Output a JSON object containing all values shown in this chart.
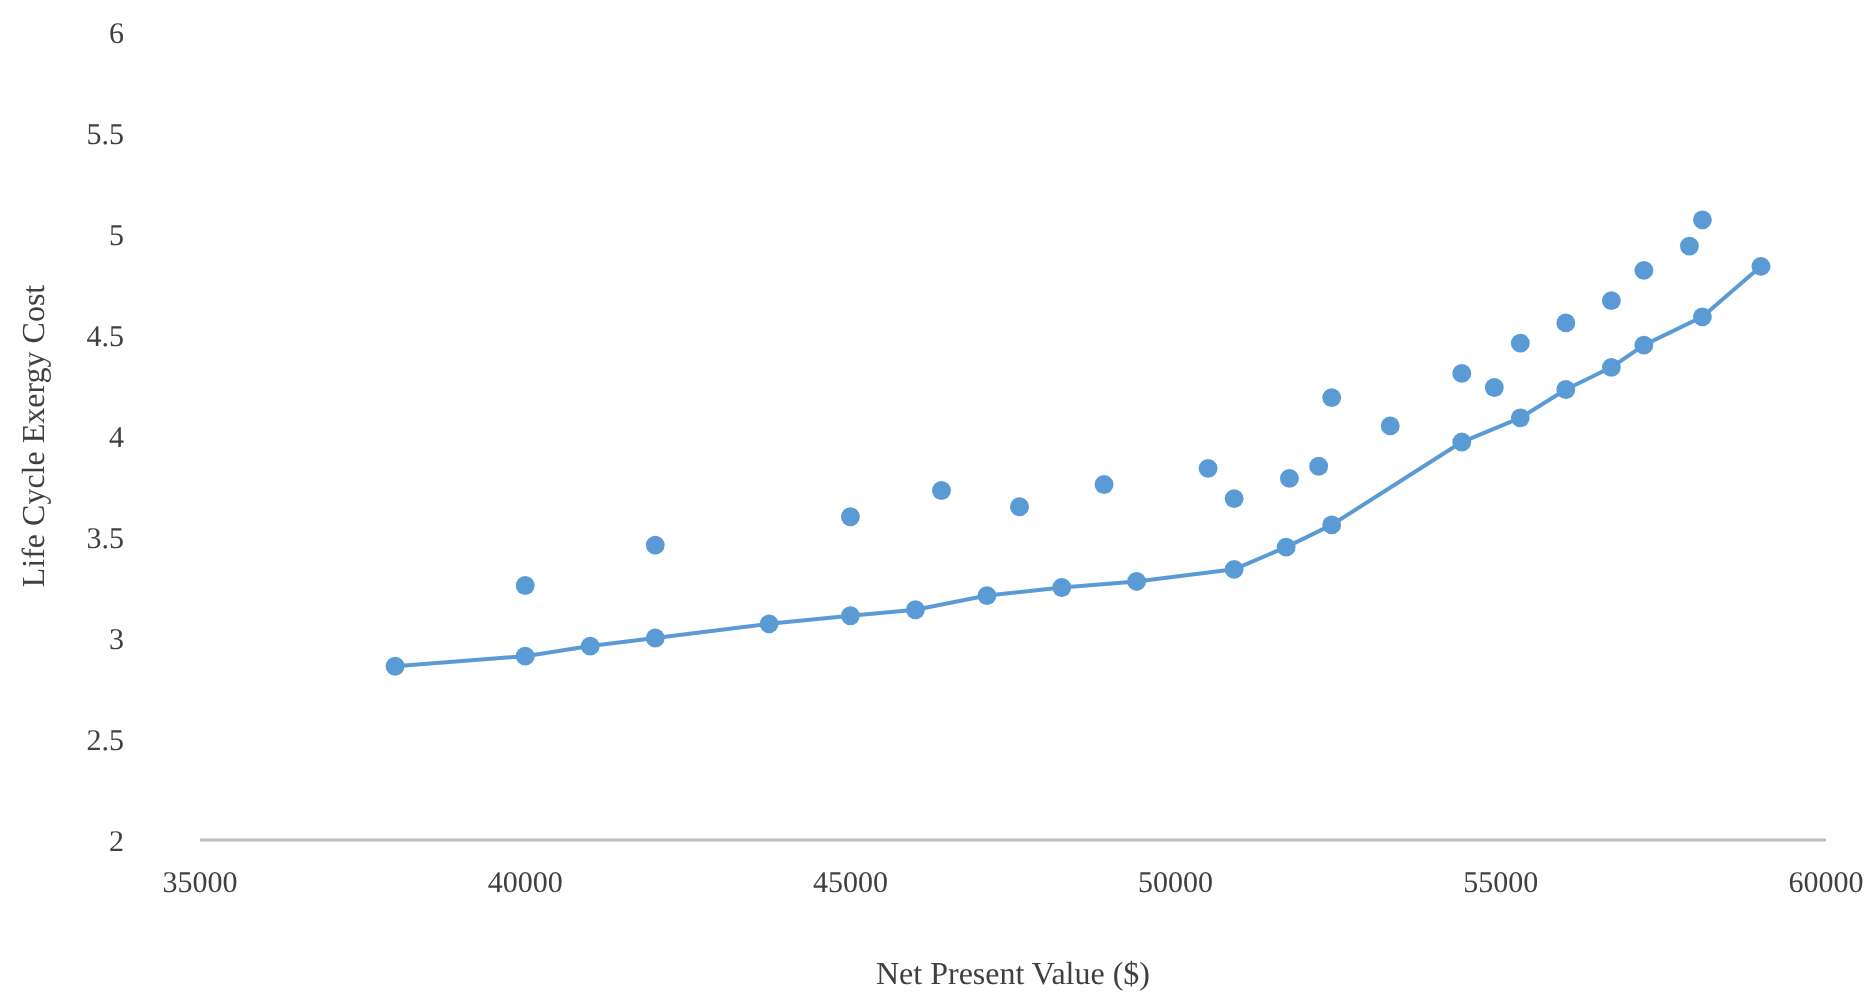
{
  "chart_data": {
    "type": "scatter",
    "xlabel": "Net Present Value ($)",
    "ylabel": "Life Cycle Exergy Cost",
    "xlim": [
      35000,
      60000
    ],
    "xticks": [
      35000,
      40000,
      45000,
      50000,
      55000,
      60000
    ],
    "ylim": [
      2,
      6
    ],
    "yticks": [
      2,
      {
        "value": 2.5,
        "label": "2.5"
      },
      3,
      {
        "value": 3.5,
        "label": "3.5"
      },
      4,
      {
        "value": 4.5,
        "label": "4.5"
      },
      5,
      {
        "value": 5.5,
        "label": "5.5"
      },
      6
    ],
    "grid": false,
    "marker": "circle",
    "series": [
      {
        "type": "line",
        "color": "#5b9bd5",
        "line_style": "solid",
        "x": [
          38000,
          40000,
          41000,
          42000,
          43750,
          45000,
          46000,
          47100,
          48250,
          49400,
          50900,
          51700,
          52400,
          54400,
          55300,
          56000,
          56700,
          57200,
          58100,
          59000
        ],
        "values": [
          2.86,
          2.91,
          2.96,
          3.0,
          3.07,
          3.11,
          3.14,
          3.21,
          3.25,
          3.28,
          3.34,
          3.45,
          3.56,
          3.97,
          4.09,
          4.23,
          4.34,
          4.45,
          4.59,
          4.84
        ]
      },
      {
        "color": "#5b9bd5",
        "x": [
          40000,
          42000,
          45000,
          46400,
          47600,
          48900,
          50500,
          50900,
          51750,
          52200,
          52400,
          53300,
          54400,
          54900,
          55300,
          56000,
          56700,
          57200,
          57900,
          58100
        ],
        "values": [
          3.26,
          3.46,
          3.6,
          3.73,
          3.65,
          3.76,
          3.84,
          3.69,
          3.79,
          3.85,
          4.19,
          4.05,
          4.31,
          4.24,
          4.46,
          4.56,
          4.67,
          4.82,
          4.94,
          5.07
        ]
      }
    ]
  }
}
